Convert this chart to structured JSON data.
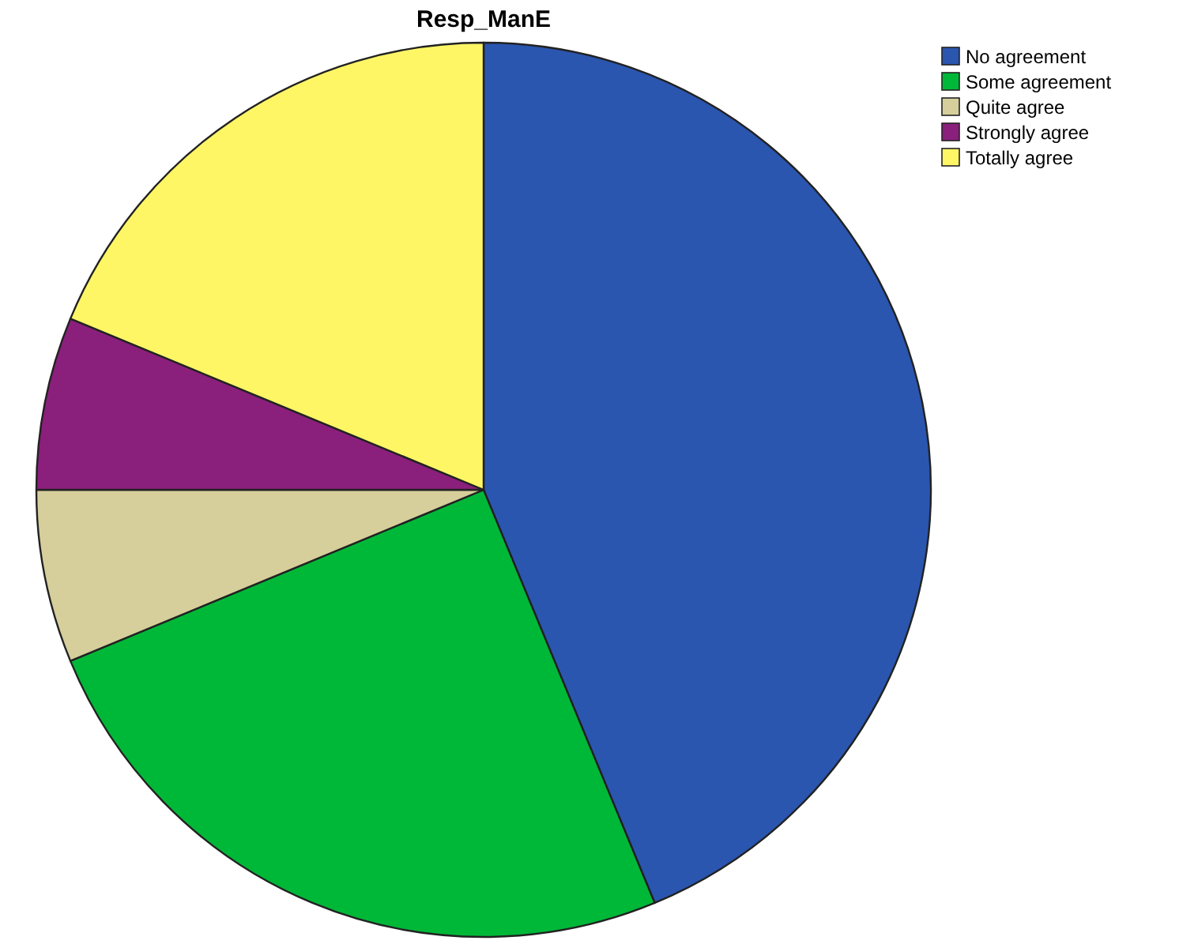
{
  "chart_data": {
    "type": "pie",
    "title": "Resp_ManE",
    "categories": [
      "No agreement",
      "Some agreement",
      "Quite agree",
      "Strongly agree",
      "Totally agree"
    ],
    "values": [
      43.75,
      25,
      6.25,
      6.25,
      18.75
    ],
    "colors": [
      "#2a56b0",
      "#00b838",
      "#d6cf9b",
      "#8b1f7c",
      "#fff666"
    ],
    "legend": "top right"
  }
}
